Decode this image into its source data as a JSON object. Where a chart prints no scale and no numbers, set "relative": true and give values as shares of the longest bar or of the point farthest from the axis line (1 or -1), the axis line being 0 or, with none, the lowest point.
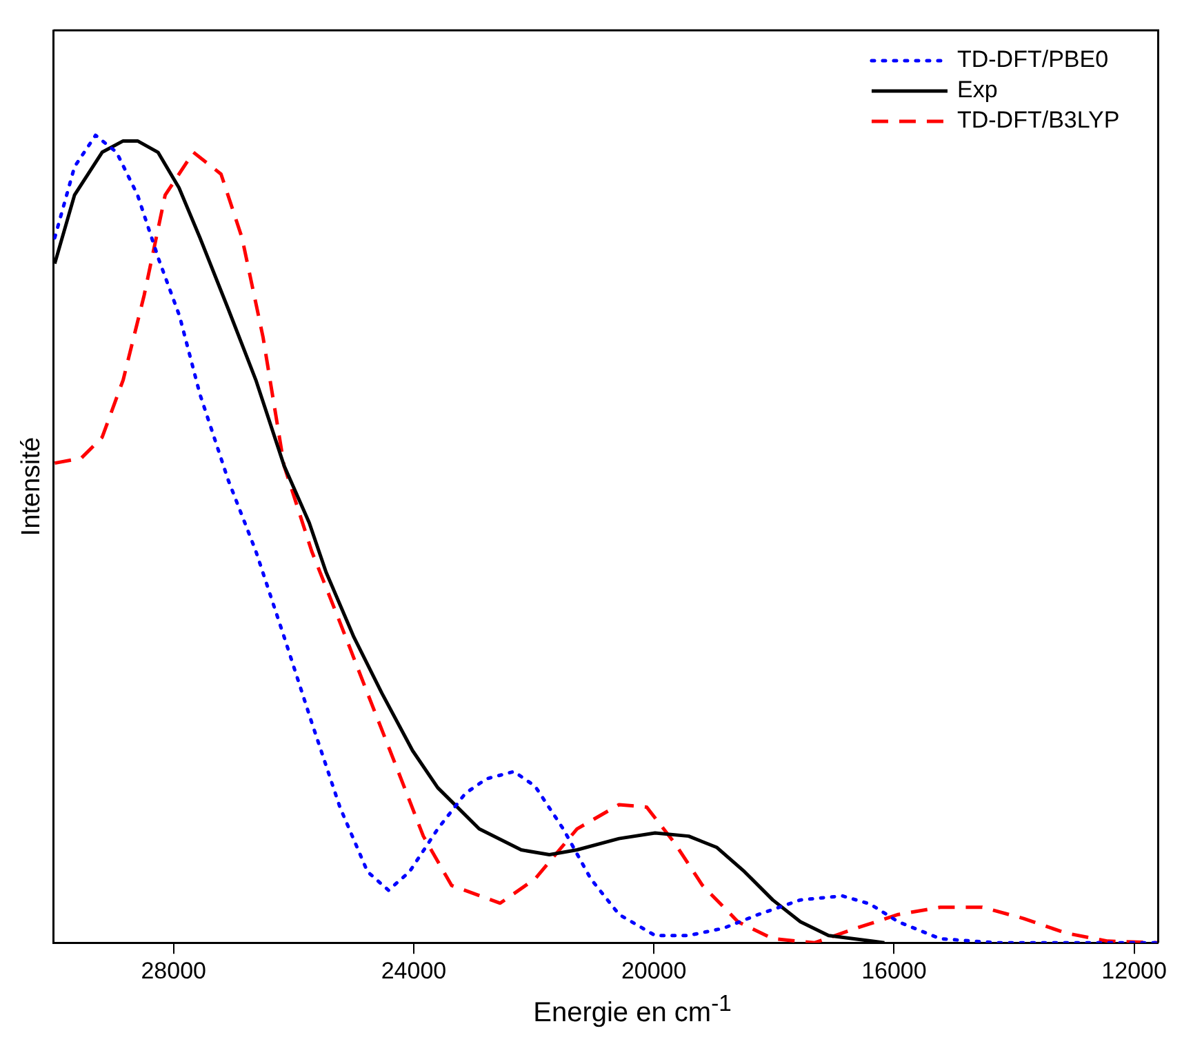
{
  "chart_data": {
    "type": "line",
    "relative": true,
    "xlabel": "Energie en cm$^{-1}$",
    "ylabel": "Intensité",
    "xlim": [
      30000,
      11600
    ],
    "xticks": [
      28000,
      24000,
      20000,
      16000,
      12000
    ],
    "legend": "top right",
    "grid": false,
    "marker": "none",
    "series": [
      {
        "name": "TD-DFT/PBE0",
        "color": "#0000ff",
        "line_style": "dotted",
        "x": [
          29980,
          29650,
          29300,
          28950,
          28600,
          28250,
          27900,
          27560,
          27090,
          26630,
          26160,
          25700,
          25230,
          24770,
          24420,
          24070,
          23600,
          23140,
          22790,
          22330,
          21980,
          21510,
          21050,
          20580,
          19980,
          19420,
          18840,
          18260,
          17560,
          16860,
          16400,
          15930,
          15230,
          14300,
          11600
        ],
        "values": [
          0.873,
          0.961,
          1.0,
          0.979,
          0.926,
          0.847,
          0.776,
          0.679,
          0.573,
          0.485,
          0.379,
          0.273,
          0.168,
          0.088,
          0.065,
          0.088,
          0.141,
          0.185,
          0.203,
          0.212,
          0.194,
          0.141,
          0.079,
          0.035,
          0.009,
          0.009,
          0.018,
          0.035,
          0.053,
          0.058,
          0.048,
          0.026,
          0.005,
          0,
          0
        ]
      },
      {
        "name": "Exp",
        "color": "#000000",
        "line_style": "solid",
        "x": [
          29980,
          29650,
          29190,
          28840,
          28600,
          28260,
          27910,
          27560,
          27090,
          26630,
          26160,
          25740,
          25460,
          25000,
          24530,
          24020,
          23600,
          22910,
          22210,
          21740,
          21280,
          20580,
          19980,
          19420,
          18950,
          18490,
          18020,
          17560,
          17090,
          16160
        ],
        "values": [
          0.841,
          0.926,
          0.979,
          0.993,
          0.993,
          0.979,
          0.935,
          0.873,
          0.785,
          0.697,
          0.591,
          0.52,
          0.459,
          0.379,
          0.309,
          0.238,
          0.192,
          0.141,
          0.115,
          0.109,
          0.115,
          0.129,
          0.136,
          0.132,
          0.118,
          0.088,
          0.053,
          0.026,
          0.009,
          0
        ]
      },
      {
        "name": "TD-DFT/B3LYP",
        "color": "#ff0000",
        "line_style": "dashed",
        "x": [
          29980,
          29540,
          29190,
          28840,
          28490,
          28140,
          27670,
          27210,
          26860,
          26510,
          26160,
          25700,
          25230,
          24770,
          24300,
          23840,
          23370,
          22560,
          21980,
          21280,
          20580,
          20120,
          19650,
          19190,
          18600,
          18020,
          17320,
          16630,
          15930,
          15230,
          14530,
          13840,
          13140,
          12440,
          11600
        ],
        "values": [
          0.594,
          0.6,
          0.626,
          0.697,
          0.802,
          0.926,
          0.979,
          0.952,
          0.873,
          0.75,
          0.591,
          0.485,
          0.397,
          0.309,
          0.22,
          0.132,
          0.071,
          0.049,
          0.079,
          0.141,
          0.171,
          0.168,
          0.123,
          0.071,
          0.026,
          0.005,
          0,
          0.018,
          0.035,
          0.044,
          0.044,
          0.03,
          0.012,
          0.002,
          0
        ]
      }
    ]
  }
}
